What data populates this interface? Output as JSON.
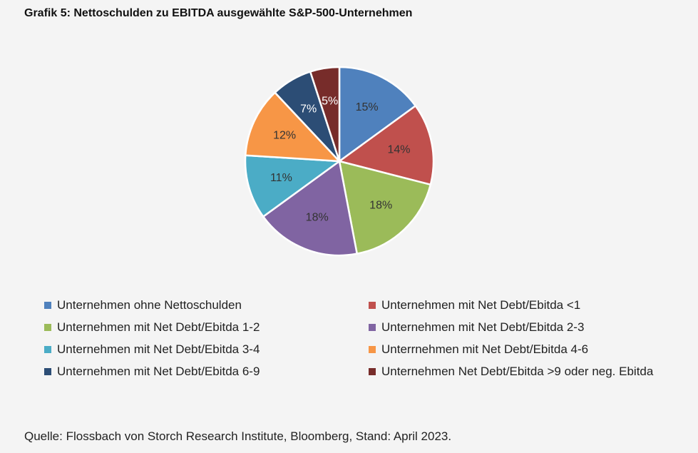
{
  "title": "Grafik 5: Nettoschulden zu EBITDA ausgewählte S&P-500-Unternehmen",
  "source": "Quelle: Flossbach von Storch Research Institute, Bloomberg, Stand: April 2023.",
  "chart_data": {
    "type": "pie",
    "title": "Grafik 5: Nettoschulden zu EBITDA ausgewählte S&P-500-Unternehmen",
    "categories": [
      "Unternehmen ohne Nettoschulden",
      "Unternehmen mit Net Debt/Ebitda <1",
      "Unternehmen mit Net Debt/Ebitda 1-2",
      "Unternehmen mit Net Debt/Ebitda 2-3",
      "Unternehmen mit Net Debt/Ebitda 3-4",
      "Unterrnehmen mit Net Debt/Ebitda 4-6",
      "Unternehmen mit Net Debt/Ebitda 6-9",
      "Unternehmen Net Debt/Ebitda >9 oder neg. Ebitda"
    ],
    "values": [
      15,
      14,
      18,
      18,
      11,
      12,
      7,
      5
    ],
    "labels": [
      "15%",
      "14%",
      "18%",
      "18%",
      "11%",
      "12%",
      "7%",
      "5%"
    ],
    "colors": [
      "#4f81bd",
      "#c0504d",
      "#9bbb59",
      "#8064a2",
      "#4bacc6",
      "#f79646",
      "#2c4d75",
      "#772c2a"
    ],
    "label_colors": [
      "#333333",
      "#333333",
      "#333333",
      "#333333",
      "#333333",
      "#333333",
      "#ffffff",
      "#ffffff"
    ],
    "legend_position": "bottom"
  }
}
